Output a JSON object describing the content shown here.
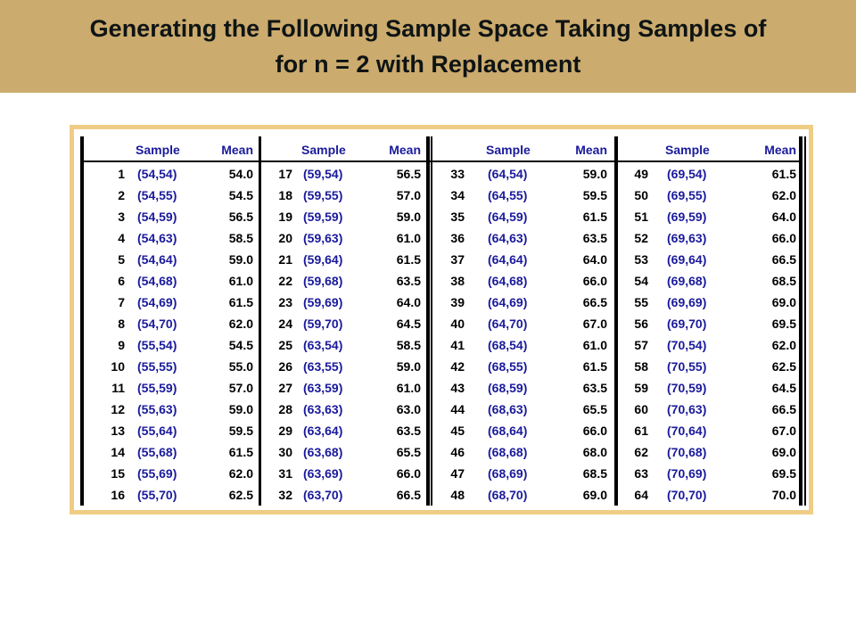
{
  "title": {
    "line1": "Generating the Following Sample Space Taking Samples of",
    "line2": "for n = 2 with Replacement"
  },
  "table": {
    "headers": {
      "sample": "Sample",
      "mean": "Mean"
    },
    "rows": [
      {
        "n": "1",
        "s": "(54,54)",
        "m": "54.0"
      },
      {
        "n": "2",
        "s": "(54,55)",
        "m": "54.5"
      },
      {
        "n": "3",
        "s": "(54,59)",
        "m": "56.5"
      },
      {
        "n": "4",
        "s": "(54,63)",
        "m": "58.5"
      },
      {
        "n": "5",
        "s": "(54,64)",
        "m": "59.0"
      },
      {
        "n": "6",
        "s": "(54,68)",
        "m": "61.0"
      },
      {
        "n": "7",
        "s": "(54,69)",
        "m": "61.5"
      },
      {
        "n": "8",
        "s": "(54,70)",
        "m": "62.0"
      },
      {
        "n": "9",
        "s": "(55,54)",
        "m": "54.5"
      },
      {
        "n": "10",
        "s": "(55,55)",
        "m": "55.0"
      },
      {
        "n": "11",
        "s": "(55,59)",
        "m": "57.0"
      },
      {
        "n": "12",
        "s": "(55,63)",
        "m": "59.0"
      },
      {
        "n": "13",
        "s": "(55,64)",
        "m": "59.5"
      },
      {
        "n": "14",
        "s": "(55,68)",
        "m": "61.5"
      },
      {
        "n": "15",
        "s": "(55,69)",
        "m": "62.0"
      },
      {
        "n": "16",
        "s": "(55,70)",
        "m": "62.5"
      },
      {
        "n": "17",
        "s": "(59,54)",
        "m": "56.5"
      },
      {
        "n": "18",
        "s": "(59,55)",
        "m": "57.0"
      },
      {
        "n": "19",
        "s": "(59,59)",
        "m": "59.0"
      },
      {
        "n": "20",
        "s": "(59,63)",
        "m": "61.0"
      },
      {
        "n": "21",
        "s": "(59,64)",
        "m": "61.5"
      },
      {
        "n": "22",
        "s": "(59,68)",
        "m": "63.5"
      },
      {
        "n": "23",
        "s": "(59,69)",
        "m": "64.0"
      },
      {
        "n": "24",
        "s": "(59,70)",
        "m": "64.5"
      },
      {
        "n": "25",
        "s": "(63,54)",
        "m": "58.5"
      },
      {
        "n": "26",
        "s": "(63,55)",
        "m": "59.0"
      },
      {
        "n": "27",
        "s": "(63,59)",
        "m": "61.0"
      },
      {
        "n": "28",
        "s": "(63,63)",
        "m": "63.0"
      },
      {
        "n": "29",
        "s": "(63,64)",
        "m": "63.5"
      },
      {
        "n": "30",
        "s": "(63,68)",
        "m": "65.5"
      },
      {
        "n": "31",
        "s": "(63,69)",
        "m": "66.0"
      },
      {
        "n": "32",
        "s": "(63,70)",
        "m": "66.5"
      },
      {
        "n": "33",
        "s": "(64,54)",
        "m": "59.0"
      },
      {
        "n": "34",
        "s": "(64,55)",
        "m": "59.5"
      },
      {
        "n": "35",
        "s": "(64,59)",
        "m": "61.5"
      },
      {
        "n": "36",
        "s": "(64,63)",
        "m": "63.5"
      },
      {
        "n": "37",
        "s": "(64,64)",
        "m": "64.0"
      },
      {
        "n": "38",
        "s": "(64,68)",
        "m": "66.0"
      },
      {
        "n": "39",
        "s": "(64,69)",
        "m": "66.5"
      },
      {
        "n": "40",
        "s": "(64,70)",
        "m": "67.0"
      },
      {
        "n": "41",
        "s": "(68,54)",
        "m": "61.0"
      },
      {
        "n": "42",
        "s": "(68,55)",
        "m": "61.5"
      },
      {
        "n": "43",
        "s": "(68,59)",
        "m": "63.5"
      },
      {
        "n": "44",
        "s": "(68,63)",
        "m": "65.5"
      },
      {
        "n": "45",
        "s": "(68,64)",
        "m": "66.0"
      },
      {
        "n": "46",
        "s": "(68,68)",
        "m": "68.0"
      },
      {
        "n": "47",
        "s": "(68,69)",
        "m": "68.5"
      },
      {
        "n": "48",
        "s": "(68,70)",
        "m": "69.0"
      },
      {
        "n": "49",
        "s": "(69,54)",
        "m": "61.5"
      },
      {
        "n": "50",
        "s": "(69,55)",
        "m": "62.0"
      },
      {
        "n": "51",
        "s": "(69,59)",
        "m": "64.0"
      },
      {
        "n": "52",
        "s": "(69,63)",
        "m": "66.0"
      },
      {
        "n": "53",
        "s": "(69,64)",
        "m": "66.5"
      },
      {
        "n": "54",
        "s": "(69,68)",
        "m": "68.5"
      },
      {
        "n": "55",
        "s": "(69,69)",
        "m": "69.0"
      },
      {
        "n": "56",
        "s": "(69,70)",
        "m": "69.5"
      },
      {
        "n": "57",
        "s": "(70,54)",
        "m": "62.0"
      },
      {
        "n": "58",
        "s": "(70,55)",
        "m": "62.5"
      },
      {
        "n": "59",
        "s": "(70,59)",
        "m": "64.5"
      },
      {
        "n": "60",
        "s": "(70,63)",
        "m": "66.5"
      },
      {
        "n": "61",
        "s": "(70,64)",
        "m": "67.0"
      },
      {
        "n": "62",
        "s": "(70,68)",
        "m": "69.0"
      },
      {
        "n": "63",
        "s": "(70,69)",
        "m": "69.5"
      },
      {
        "n": "64",
        "s": "(70,70)",
        "m": "70.0"
      }
    ]
  },
  "colors": {
    "title_bar": "#cbab6e",
    "frame": "#f0cd86",
    "sample_text": "#1a1a9c"
  }
}
